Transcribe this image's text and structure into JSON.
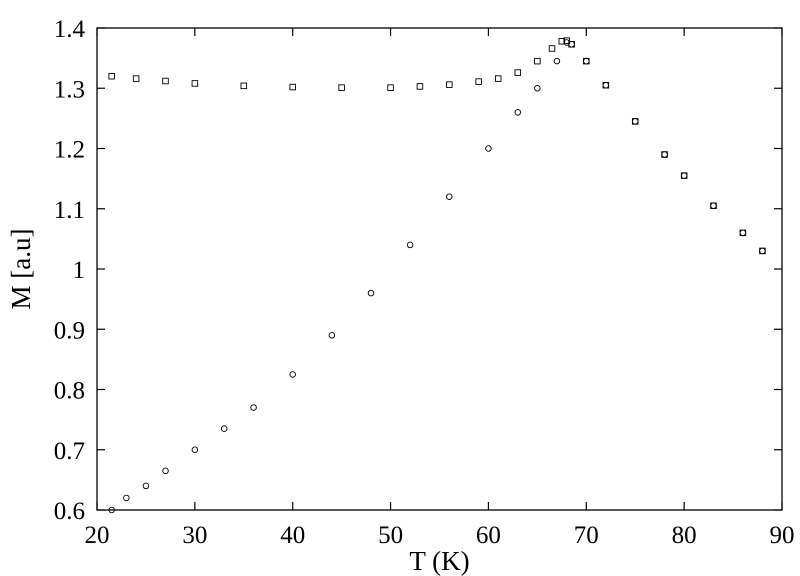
{
  "chart_data": {
    "type": "scatter",
    "title": "",
    "xlabel": "T (K)",
    "ylabel": "M [a.u]",
    "xlim": [
      20,
      90
    ],
    "ylim": [
      0.6,
      1.4
    ],
    "xticks": [
      "20",
      "30",
      "40",
      "50",
      "60",
      "70",
      "80",
      "90"
    ],
    "yticks": [
      "0.6",
      "0.7",
      "0.8",
      "0.9",
      "1",
      "1.1",
      "1.2",
      "1.3",
      "1.4"
    ],
    "grid": false,
    "legend": "none",
    "series": [
      {
        "marker": "square",
        "color": "#000000",
        "x": [
          21.5,
          24.0,
          27.0,
          30.0,
          35.0,
          40.0,
          45.0,
          50.0,
          53.0,
          56.0,
          59.0,
          61.0,
          63.0,
          65.0,
          66.5,
          67.5,
          68.0,
          68.5,
          70.0,
          72.0,
          75.0,
          78.0,
          80.0,
          83.0,
          86.0,
          88.0
        ],
        "y": [
          1.32,
          1.316,
          1.312,
          1.308,
          1.304,
          1.302,
          1.301,
          1.301,
          1.303,
          1.306,
          1.311,
          1.316,
          1.326,
          1.345,
          1.366,
          1.378,
          1.379,
          1.373,
          1.345,
          1.305,
          1.245,
          1.19,
          1.155,
          1.105,
          1.06,
          1.03
        ]
      },
      {
        "marker": "circle",
        "color": "#000000",
        "x": [
          21.5,
          23.0,
          25.0,
          27.0,
          30.0,
          33.0,
          36.0,
          40.0,
          44.0,
          48.0,
          52.0,
          56.0,
          60.0,
          63.0,
          65.0,
          67.0,
          68.0,
          68.5,
          70.0,
          72.0,
          75.0,
          78.0,
          80.0,
          83.0,
          86.0,
          88.0
        ],
        "y": [
          0.6,
          0.62,
          0.64,
          0.665,
          0.7,
          0.735,
          0.77,
          0.825,
          0.89,
          0.96,
          1.04,
          1.12,
          1.2,
          1.26,
          1.3,
          1.345,
          1.376,
          1.373,
          1.345,
          1.305,
          1.245,
          1.19,
          1.155,
          1.105,
          1.06,
          1.03
        ]
      }
    ]
  }
}
